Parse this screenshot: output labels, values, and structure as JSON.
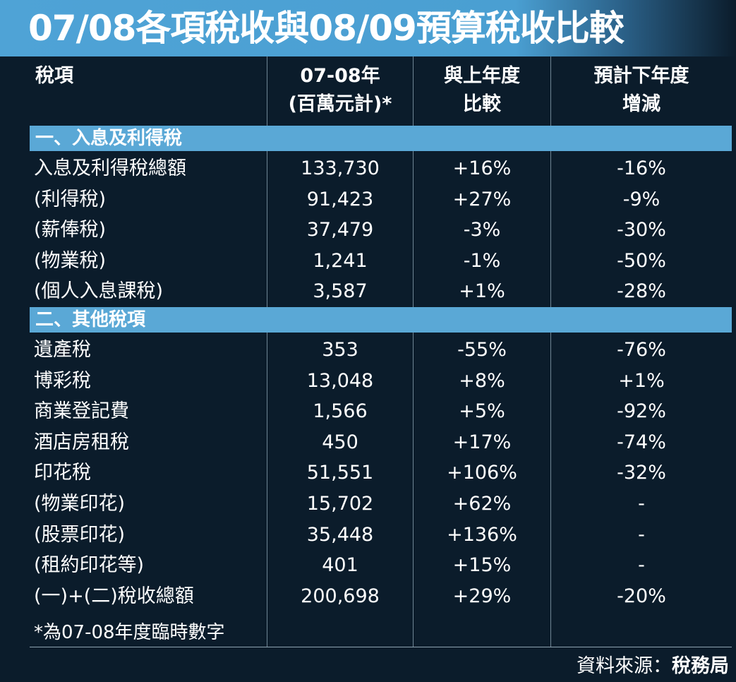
{
  "title": "07/08各項稅收與08/09預算稅收比較",
  "headers": {
    "col0": "稅項",
    "col1_line1": "07-08年",
    "col1_line2": "(百萬元計)*",
    "col2_line1": "與上年度",
    "col2_line2": "比較",
    "col3_line1": "預計下年度",
    "col3_line2": "增減"
  },
  "sections": [
    {
      "label": "一、入息及利得稅",
      "rows": [
        {
          "item": "入息及利得稅總額",
          "amount": "133,730",
          "change": "+16%",
          "forecast": "-16%"
        },
        {
          "item": "(利得稅)",
          "amount": "91,423",
          "change": "+27%",
          "forecast": "-9%"
        },
        {
          "item": "(薪俸稅)",
          "amount": "37,479",
          "change": "-3%",
          "forecast": "-30%"
        },
        {
          "item": "(物業稅)",
          "amount": "1,241",
          "change": "-1%",
          "forecast": "-50%"
        },
        {
          "item": "(個人入息課稅)",
          "amount": "3,587",
          "change": "+1%",
          "forecast": "-28%"
        }
      ]
    },
    {
      "label": "二、其他稅項",
      "rows": [
        {
          "item": "遺產稅",
          "amount": "353",
          "change": "-55%",
          "forecast": "-76%"
        },
        {
          "item": "博彩稅",
          "amount": "13,048",
          "change": "+8%",
          "forecast": "+1%"
        },
        {
          "item": "商業登記費",
          "amount": "1,566",
          "change": "+5%",
          "forecast": "-92%"
        },
        {
          "item": "酒店房租稅",
          "amount": "450",
          "change": "+17%",
          "forecast": "-74%"
        },
        {
          "item": "印花稅",
          "amount": "51,551",
          "change": "+106%",
          "forecast": "-32%"
        },
        {
          "item": "(物業印花)",
          "amount": "15,702",
          "change": "+62%",
          "forecast": "-"
        },
        {
          "item": "(股票印花)",
          "amount": "35,448",
          "change": "+136%",
          "forecast": "-"
        },
        {
          "item": "(租約印花等)",
          "amount": "401",
          "change": "+15%",
          "forecast": "-"
        },
        {
          "item": "(一)+(二)稅收總額",
          "amount": "200,698",
          "change": "+29%",
          "forecast": "-20%"
        }
      ]
    }
  ],
  "footnote": "*為07-08年度臨時數字",
  "source": {
    "prefix": "資料來源：",
    "org": "稅務局"
  },
  "colors": {
    "background": "#0b1c2b",
    "accent": "#5aa8d6",
    "title_bar": "#4fa3d6",
    "text": "#ffffff"
  }
}
